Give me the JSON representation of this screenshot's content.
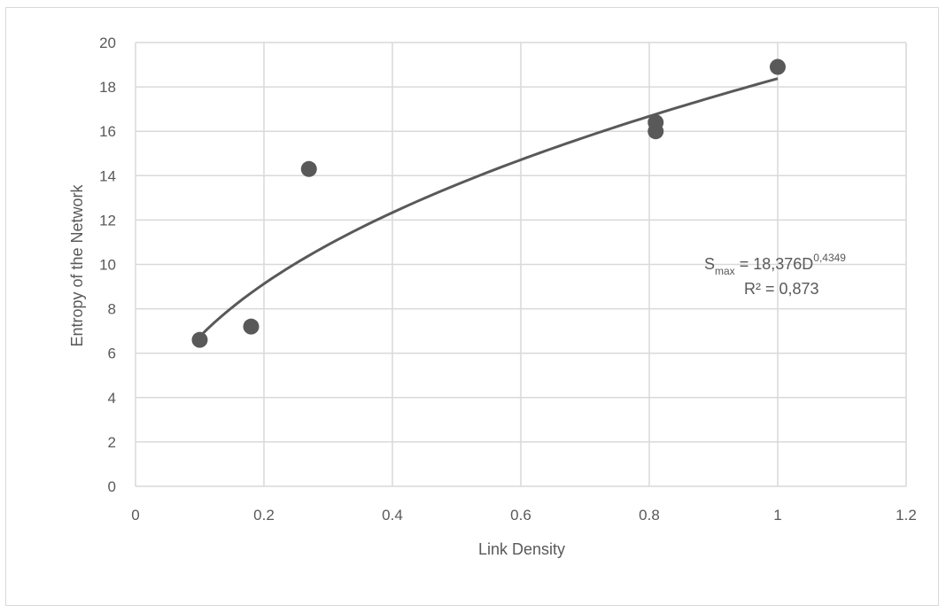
{
  "chart_data": {
    "type": "scatter",
    "title": "",
    "xlabel": "Link Density",
    "ylabel": "Entropy of the Network",
    "xlim": [
      0,
      1.2
    ],
    "ylim": [
      0,
      20
    ],
    "x_ticks": [
      "0",
      "0.2",
      "0.4",
      "0.6",
      "0.8",
      "1",
      "1.2"
    ],
    "y_ticks": [
      "0",
      "2",
      "4",
      "6",
      "8",
      "10",
      "12",
      "14",
      "16",
      "18",
      "20"
    ],
    "grid": true,
    "points": [
      {
        "x": 0.1,
        "y": 6.6
      },
      {
        "x": 0.18,
        "y": 7.2
      },
      {
        "x": 0.27,
        "y": 14.3
      },
      {
        "x": 0.81,
        "y": 16.4
      },
      {
        "x": 0.81,
        "y": 16.0
      },
      {
        "x": 1.0,
        "y": 18.9
      }
    ],
    "trendline": {
      "type": "power",
      "coefficient": 18.376,
      "exponent": 0.4349,
      "x_range": [
        0.1,
        1.0
      ]
    },
    "annotation": {
      "eq_lhs": "S",
      "eq_sub": "max",
      "eq_mid": " = 18,376D",
      "eq_sup": "0,4349",
      "r2": "R² = 0,873"
    },
    "colors": {
      "marker": "#595959",
      "trendline": "#595959",
      "grid": "#d9d9d9",
      "text": "#595959"
    }
  }
}
